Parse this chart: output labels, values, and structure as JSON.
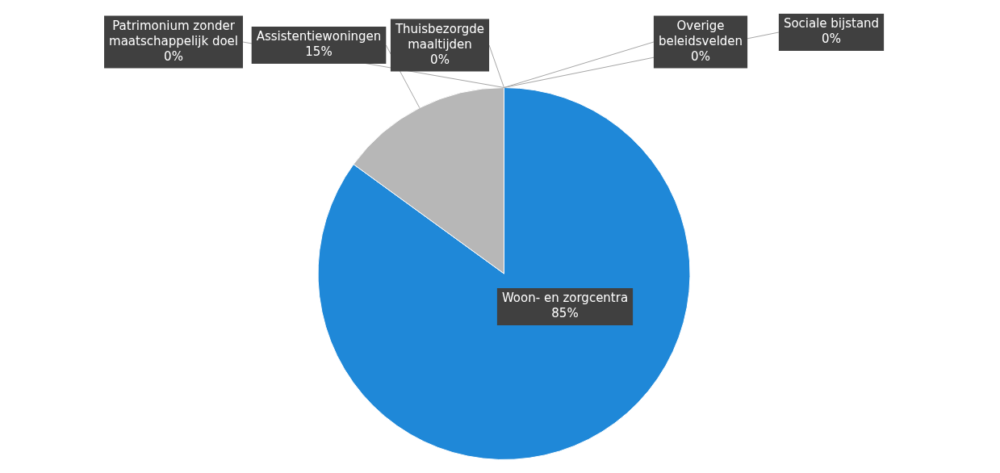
{
  "chart_data": {
    "type": "pie",
    "categories": [
      "Woon- en zorgcentra",
      "Assistentiewoningen",
      "Patrimonium zonder maatschappelijk doel",
      "Thuisbezorgde maaltijden",
      "Overige beleidsvelden",
      "Sociale bijstand"
    ],
    "values": [
      85,
      15,
      0,
      0,
      0,
      0
    ],
    "value_labels": [
      "85%",
      "15%",
      "0%",
      "0%",
      "0%",
      "0%"
    ],
    "colors": [
      "#1f88d8",
      "#b7b7b7",
      "#f0a030",
      "#f5c400",
      "#4a70c0",
      "#70ad47"
    ],
    "legend": false
  }
}
